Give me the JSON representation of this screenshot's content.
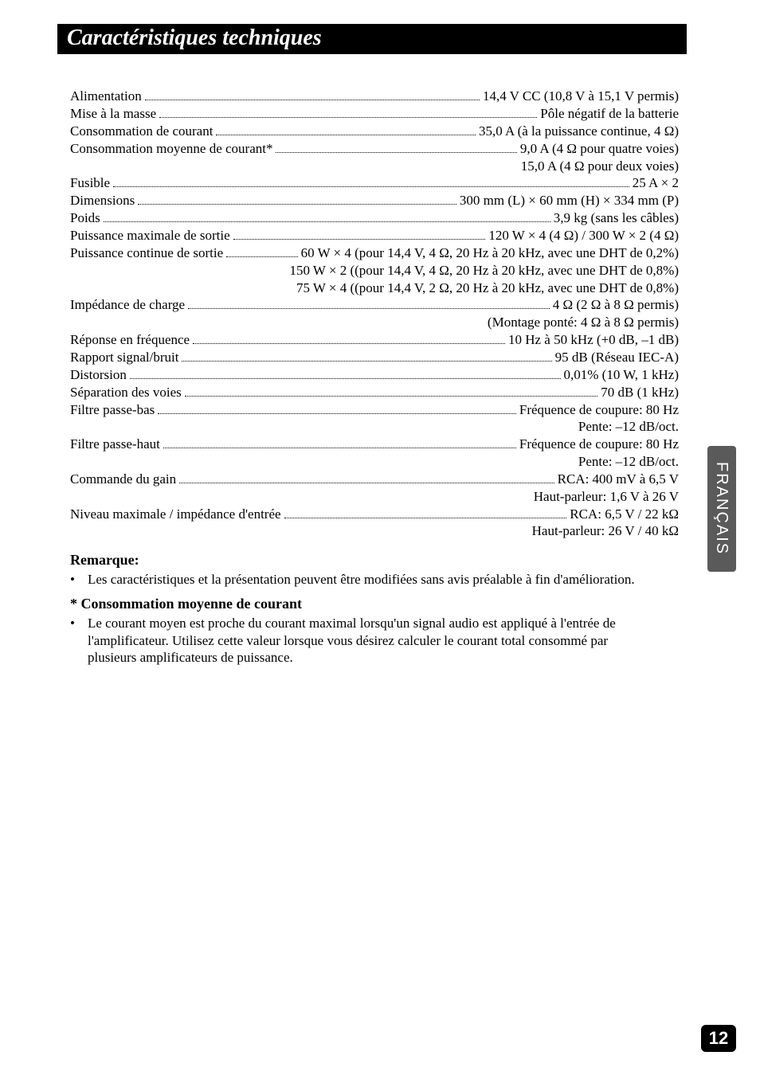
{
  "title": "Caractéristiques techniques",
  "side_tab": "FRANÇAIS",
  "page_number": "12",
  "colors": {
    "title_bg": "#000000",
    "title_text": "#ffffff",
    "body_text": "#000000",
    "side_tab_bg": "#5a5a5a",
    "side_tab_text": "#ffffff",
    "pagenum_bg": "#000000",
    "pagenum_text": "#ffffff",
    "page_bg": "#ffffff"
  },
  "typography": {
    "title_fontsize": 28,
    "body_fontsize": 17,
    "note_head_fontsize": 18,
    "title_style": "bold italic",
    "body_family": "Times New Roman"
  },
  "specs": [
    {
      "label": "Alimentation",
      "value": "14,4 V CC (10,8 V à 15,1 V permis)"
    },
    {
      "label": "Mise à la masse",
      "value": "Pôle négatif de la batterie"
    },
    {
      "label": "Consommation de courant",
      "value": "35,0 A (à la puissance continue, 4 Ω)"
    },
    {
      "label": "Consommation moyenne de courant*",
      "value": "9,0 A (4 Ω pour quatre voies)",
      "cont": [
        "15,0 A (4 Ω pour deux voies)"
      ]
    },
    {
      "label": "Fusible",
      "value": "25 A × 2"
    },
    {
      "label": "Dimensions",
      "value": "300 mm (L) × 60 mm (H) × 334 mm (P)"
    },
    {
      "label": "Poids",
      "value": "3,9 kg (sans les câbles)"
    },
    {
      "label": "Puissance maximale de sortie",
      "value": "120 W × 4 (4 Ω) / 300 W × 2 (4 Ω)"
    },
    {
      "label": "Puissance continue de sortie",
      "value": "60 W × 4 (pour 14,4 V, 4 Ω, 20 Hz à 20 kHz, avec une DHT de 0,2%)",
      "cont": [
        "150 W × 2 ((pour 14,4 V, 4 Ω, 20 Hz à 20 kHz, avec une DHT de 0,8%)",
        "75 W × 4 ((pour 14,4 V, 2 Ω, 20 Hz à 20 kHz, avec une DHT de 0,8%)"
      ]
    },
    {
      "label": "Impédance de charge",
      "value": "4 Ω (2 Ω à 8 Ω permis)",
      "cont": [
        "(Montage ponté: 4 Ω à 8 Ω permis)"
      ]
    },
    {
      "label": "Réponse en fréquence",
      "value": "10 Hz à 50 kHz (+0 dB, –1 dB)"
    },
    {
      "label": "Rapport signal/bruit",
      "value": "95 dB (Réseau IEC-A)"
    },
    {
      "label": "Distorsion",
      "value": "0,01% (10 W, 1 kHz)"
    },
    {
      "label": "Séparation des voies",
      "value": "70 dB (1 kHz)"
    },
    {
      "label": "Filtre passe-bas",
      "value": "Fréquence de coupure: 80 Hz",
      "cont": [
        "Pente: –12 dB/oct."
      ]
    },
    {
      "label": "Filtre passe-haut",
      "value": "Fréquence de coupure: 80 Hz",
      "cont": [
        "Pente: –12 dB/oct."
      ]
    },
    {
      "label": "Commande du gain",
      "value": "RCA: 400 mV à 6,5 V",
      "cont": [
        "Haut-parleur: 1,6 V à 26 V"
      ]
    },
    {
      "label": "Niveau maximale / impédance d'entrée",
      "value": "RCA: 6,5 V / 22 kΩ",
      "cont": [
        "Haut-parleur: 26 V / 40 kΩ"
      ]
    }
  ],
  "notes": [
    {
      "heading": "Remarque:",
      "bullets": [
        "Les caractéristiques et la présentation peuvent être modifiées sans avis préalable à fin d'amélioration."
      ]
    },
    {
      "heading": "* Consommation moyenne de courant",
      "bullets": [
        "Le courant moyen est proche du courant maximal lorsqu'un signal audio est appliqué à l'entrée de l'amplificateur. Utilisez cette valeur lorsque vous désirez calculer le courant total consommé par plusieurs amplificateurs de puissance."
      ]
    }
  ]
}
